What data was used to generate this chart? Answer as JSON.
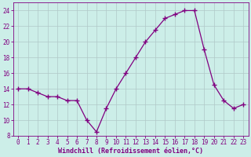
{
  "x": [
    0,
    1,
    2,
    3,
    4,
    5,
    6,
    7,
    8,
    9,
    10,
    11,
    12,
    13,
    14,
    15,
    16,
    17,
    18,
    19,
    20,
    21,
    22,
    23
  ],
  "y": [
    14.0,
    14.0,
    13.5,
    13.0,
    13.0,
    12.5,
    12.5,
    10.0,
    8.5,
    11.5,
    14.0,
    16.0,
    18.0,
    20.0,
    21.5,
    23.0,
    23.5,
    24.0,
    24.0,
    19.0,
    14.5,
    12.5,
    11.5,
    12.0
  ],
  "line_color": "#800080",
  "marker": "+",
  "marker_size": 4,
  "marker_linewidth": 1.0,
  "bg_color": "#cceee8",
  "grid_color": "#b0c8c8",
  "tick_color": "#800080",
  "label_color": "#800080",
  "xlabel": "Windchill (Refroidissement éolien,°C)",
  "ylim": [
    8,
    25
  ],
  "xlim": [
    -0.5,
    23.5
  ],
  "yticks": [
    8,
    10,
    12,
    14,
    16,
    18,
    20,
    22,
    24
  ],
  "xticks": [
    0,
    1,
    2,
    3,
    4,
    5,
    6,
    7,
    8,
    9,
    10,
    11,
    12,
    13,
    14,
    15,
    16,
    17,
    18,
    19,
    20,
    21,
    22,
    23
  ],
  "axis_fontsize": 6.0,
  "tick_fontsize": 5.5,
  "linewidth": 0.9
}
